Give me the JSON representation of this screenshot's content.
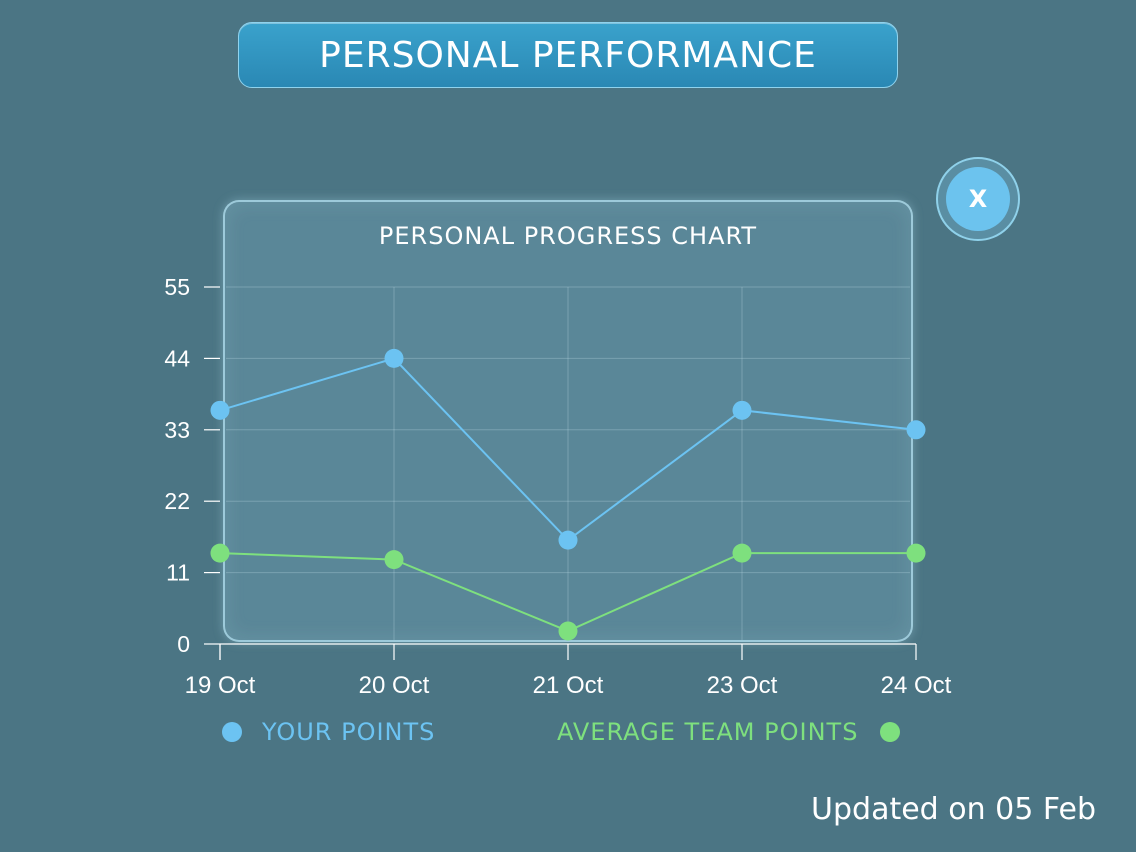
{
  "header": {
    "title": "PERSONAL PERFORMANCE"
  },
  "close_button": {
    "label": "X"
  },
  "footer": {
    "updated_text": "Updated on 05 Feb"
  },
  "colors": {
    "your_points": "#6cc3f2",
    "team_points": "#7ee07e"
  },
  "chart_data": {
    "type": "line",
    "title": "PERSONAL PROGRESS CHART",
    "categories": [
      "19 Oct",
      "20 Oct",
      "21 Oct",
      "23 Oct",
      "24 Oct"
    ],
    "yticks": [
      0,
      11,
      22,
      33,
      44,
      55
    ],
    "ylim": [
      0,
      55
    ],
    "grid": true,
    "legend_position": "bottom",
    "series": [
      {
        "name": "YOUR POINTS",
        "values": [
          36,
          44,
          16,
          36,
          33
        ]
      },
      {
        "name": "AVERAGE TEAM POINTS",
        "values": [
          14,
          13,
          2,
          14,
          14
        ]
      }
    ]
  }
}
